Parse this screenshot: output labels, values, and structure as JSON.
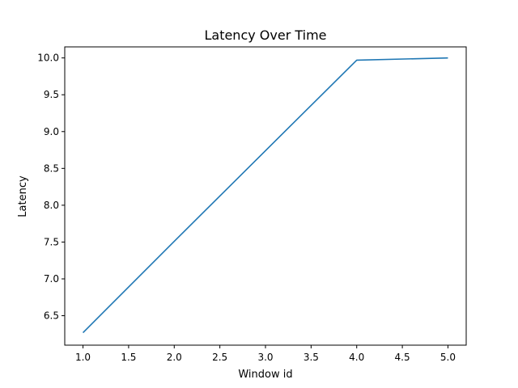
{
  "chart_data": {
    "type": "line",
    "title": "Latency Over Time",
    "xlabel": "Window id",
    "ylabel": "Latency",
    "xlim": [
      0.8,
      5.2
    ],
    "ylim": [
      6.1,
      10.15
    ],
    "xticks": [
      1.0,
      1.5,
      2.0,
      2.5,
      3.0,
      3.5,
      4.0,
      4.5,
      5.0
    ],
    "xtick_labels": [
      "1.0",
      "1.5",
      "2.0",
      "2.5",
      "3.0",
      "3.5",
      "4.0",
      "4.5",
      "5.0"
    ],
    "yticks": [
      6.5,
      7.0,
      7.5,
      8.0,
      8.5,
      9.0,
      9.5,
      10.0
    ],
    "ytick_labels": [
      "6.5",
      "7.0",
      "7.5",
      "8.0",
      "8.5",
      "9.0",
      "9.5",
      "10.0"
    ],
    "grid": false,
    "legend": false,
    "series": [
      {
        "x": [
          1,
          2,
          3,
          4,
          5
        ],
        "values": [
          6.27,
          7.51,
          8.74,
          9.97,
          10.0
        ],
        "color": "#1f77b4"
      }
    ]
  }
}
